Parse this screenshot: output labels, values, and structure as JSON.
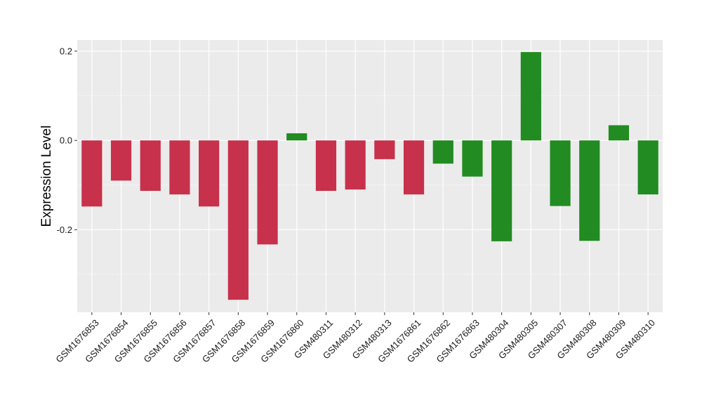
{
  "chart_data": {
    "type": "bar",
    "title": "",
    "xlabel": "",
    "ylabel": "Expression Level",
    "ylim": [
      -0.385,
      0.225
    ],
    "yticks": [
      0.2,
      0.0,
      -0.2
    ],
    "ytick_labels": [
      "0.2",
      "0.0",
      "-0.2"
    ],
    "grid": true,
    "background": "#ebebeb",
    "categories": [
      "GSM1676853",
      "GSM1676854",
      "GSM1676855",
      "GSM1676856",
      "GSM1676857",
      "GSM1676858",
      "GSM1676859",
      "GSM1676860",
      "GSM480311",
      "GSM480312",
      "GSM480313",
      "GSM1676861",
      "GSM1676862",
      "GSM1676863",
      "GSM480304",
      "GSM480305",
      "GSM480307",
      "GSM480308",
      "GSM480309",
      "GSM480310"
    ],
    "values": [
      -0.148,
      -0.09,
      -0.113,
      -0.121,
      -0.148,
      -0.357,
      -0.233,
      0.016,
      -0.113,
      -0.11,
      -0.042,
      -0.121,
      -0.052,
      -0.081,
      -0.226,
      0.198,
      -0.147,
      -0.225,
      0.034,
      -0.121
    ],
    "bar_colors": [
      "#c7314b",
      "#c7314b",
      "#c7314b",
      "#c7314b",
      "#c7314b",
      "#c7314b",
      "#c7314b",
      "#228b22",
      "#c7314b",
      "#c7314b",
      "#c7314b",
      "#c7314b",
      "#228b22",
      "#228b22",
      "#228b22",
      "#228b22",
      "#228b22",
      "#228b22",
      "#228b22",
      "#228b22"
    ]
  }
}
